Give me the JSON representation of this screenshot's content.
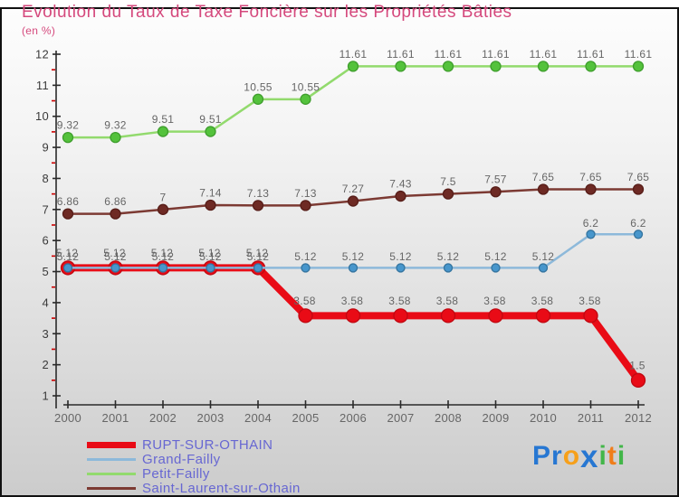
{
  "title": "Evolution du Taux de Taxe Foncière sur les Propriétés Bâties",
  "subtitle": "(en %)",
  "colors": {
    "title": "#d5497d",
    "axis": "#2a2a2a",
    "axis_label": "#3a3a3a",
    "year_label": "#666666",
    "minor_tick": "#cc0000",
    "point_label": "#666666",
    "legend_text": "#6767d2",
    "frame_border": "#111111"
  },
  "chart_data": {
    "type": "line",
    "title": "Evolution du Taux de Taxe Foncière sur les Propriétés Bâties",
    "ylabel": "(en %)",
    "x": [
      2000,
      2001,
      2002,
      2003,
      2004,
      2005,
      2006,
      2007,
      2008,
      2009,
      2010,
      2011,
      2012
    ],
    "ylim": [
      1,
      12
    ],
    "ytick_step": 1,
    "ytick_minor_step": 0.5,
    "grid": false,
    "legend_position": "bottom-left",
    "series": [
      {
        "name": "RUPT-SUR-OTHAIN",
        "values": [
          5.12,
          5.12,
          5.12,
          5.12,
          5.12,
          3.58,
          3.58,
          3.58,
          3.58,
          3.58,
          3.58,
          3.58,
          1.5
        ],
        "line_color": "#e90b16",
        "marker_fill": "#e90b16",
        "marker_stroke": "#c00811",
        "line_width": 8,
        "marker_radius": 7.5,
        "swatch_height": 7
      },
      {
        "name": "Grand-Failly",
        "values": [
          5.12,
          5.12,
          5.12,
          5.12,
          5.12,
          5.12,
          5.12,
          5.12,
          5.12,
          5.12,
          5.12,
          6.2,
          6.2
        ],
        "line_color": "#8db9da",
        "marker_fill": "#4796cc",
        "marker_stroke": "#34749f",
        "line_width": 2.5,
        "marker_radius": 4.5,
        "swatch_height": 3
      },
      {
        "name": "Petit-Failly",
        "values": [
          9.32,
          9.32,
          9.51,
          9.51,
          10.55,
          10.55,
          11.61,
          11.61,
          11.61,
          11.61,
          11.61,
          11.61,
          11.61
        ],
        "line_color": "#92da6d",
        "marker_fill": "#54c23c",
        "marker_stroke": "#3f9e2d",
        "line_width": 2.5,
        "marker_radius": 5.5,
        "swatch_height": 3
      },
      {
        "name": "Saint-Laurent-sur-Othain",
        "values": [
          6.86,
          6.86,
          7,
          7.14,
          7.13,
          7.13,
          7.27,
          7.43,
          7.5,
          7.57,
          7.65,
          7.65,
          7.65
        ],
        "line_color": "#7c3a33",
        "marker_fill": "#6e2a24",
        "marker_stroke": "#571d18",
        "line_width": 2.5,
        "marker_radius": 5.5,
        "swatch_height": 3
      }
    ]
  },
  "logo": {
    "letters": [
      {
        "ch": "P",
        "color": "#2777d2",
        "big": false
      },
      {
        "ch": "r",
        "color": "#2777d2",
        "big": false
      },
      {
        "ch": "o",
        "color": "#f6a01b",
        "big": false
      },
      {
        "ch": "x",
        "color": "#2777d2",
        "big": true
      },
      {
        "ch": "i",
        "color": "#43b649",
        "big": false
      },
      {
        "ch": "t",
        "color": "#f07d1a",
        "big": false
      },
      {
        "ch": "i",
        "color": "#43b649",
        "big": false
      }
    ]
  }
}
